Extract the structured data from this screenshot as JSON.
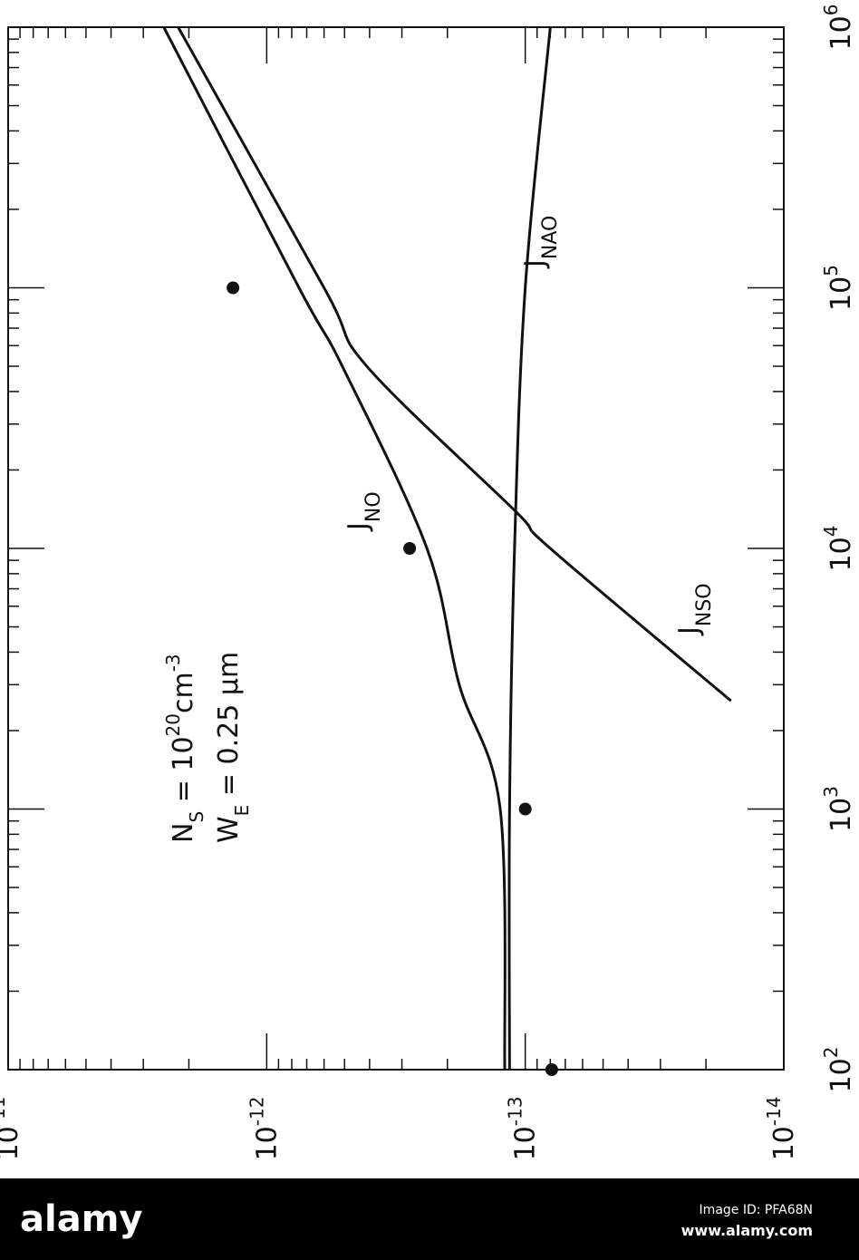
{
  "chart_data": {
    "type": "line",
    "orientation": "rotated 90 degrees counter-clockwise (scanned figure)",
    "xscale": "log",
    "yscale": "log",
    "xlim": [
      100,
      1000000
    ],
    "ylim": [
      1e-14,
      1e-11
    ],
    "grid": false,
    "x_ticks": [
      {
        "base": "10",
        "exp": "2",
        "value": 100
      },
      {
        "base": "10",
        "exp": "3",
        "value": 1000
      },
      {
        "base": "10",
        "exp": "4",
        "value": 10000
      },
      {
        "base": "10",
        "exp": "5",
        "value": 100000
      },
      {
        "base": "10",
        "exp": "6",
        "value": 1000000
      }
    ],
    "y_ticks": [
      {
        "base": "10",
        "exp": "-11",
        "value": 1e-11
      },
      {
        "base": "10",
        "exp": "-12",
        "value": 1e-12
      },
      {
        "base": "10",
        "exp": "-13",
        "value": 1e-13
      },
      {
        "base": "10",
        "exp": "-14",
        "value": 1e-14
      }
    ],
    "series": [
      {
        "name": "J_NO",
        "label_main": "J",
        "label_sub": "NO",
        "points": [
          [
            100,
            1.2e-13
          ],
          [
            1000,
            1.25e-13
          ],
          [
            3000,
            1.8e-13
          ],
          [
            10000,
            2.4e-13
          ],
          [
            50000,
            5.1e-13
          ],
          [
            100000,
            7.5e-13
          ],
          [
            1000000,
            2.5e-12
          ]
        ]
      },
      {
        "name": "J_NSO",
        "label_main": "J",
        "label_sub": "NSO",
        "points": [
          [
            2600,
            1.6e-14
          ],
          [
            10000,
            8e-14
          ],
          [
            14000,
            1.1e-13
          ],
          [
            50000,
            4.1e-13
          ],
          [
            100000,
            6e-13
          ],
          [
            1000000,
            2.2e-12
          ]
        ]
      },
      {
        "name": "J_NAO",
        "label_main": "J",
        "label_sub": "NAO",
        "points": [
          [
            100,
            1.15e-13
          ],
          [
            1000,
            1.15e-13
          ],
          [
            10000,
            1.1e-13
          ],
          [
            100000,
            1e-13
          ],
          [
            1000000,
            8e-14
          ]
        ]
      }
    ],
    "measured_points": [
      [
        100,
        7.9e-14
      ],
      [
        1000,
        1e-13
      ],
      [
        10000,
        2.8e-13
      ],
      [
        100000,
        1.35e-12
      ]
    ],
    "annotations": {
      "ns": {
        "main": "N",
        "sub": "S",
        "eq": " = 10",
        "sup": "20",
        "unit": "cm",
        "unit_sup": "-3"
      },
      "we": {
        "main": "W",
        "sub": "E",
        "eq": " = 0.25 ",
        "unit": "μm"
      }
    }
  },
  "banner": {
    "logo": "alamy",
    "image_id": "Image ID: PFA68N",
    "url": "www.alamy.com",
    "background": "#000000"
  }
}
